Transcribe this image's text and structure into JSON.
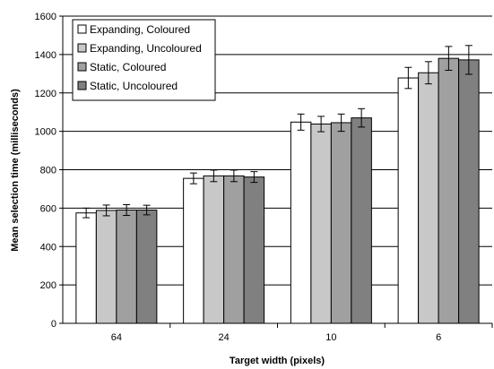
{
  "chart_data": {
    "type": "bar",
    "xlabel": "Target width (pixels)",
    "ylabel": "Mean selection time (milliseconds)",
    "categories": [
      "64",
      "24",
      "10",
      "6"
    ],
    "ylim": [
      0,
      1600
    ],
    "yticks": [
      0,
      200,
      400,
      600,
      800,
      1000,
      1200,
      1400,
      1600
    ],
    "grid": true,
    "legend": "top-left",
    "series": [
      {
        "name": "Expanding, Coloured",
        "color": "#ffffff",
        "values": [
          575,
          755,
          1048,
          1278
        ],
        "errors": [
          25,
          28,
          42,
          55
        ]
      },
      {
        "name": "Expanding, Uncoloured",
        "color": "#c8c8c8",
        "values": [
          588,
          768,
          1038,
          1305
        ],
        "errors": [
          28,
          30,
          40,
          58
        ]
      },
      {
        "name": "Static, Coloured",
        "color": "#a0a0a0",
        "values": [
          590,
          768,
          1045,
          1380
        ],
        "errors": [
          28,
          30,
          45,
          62
        ]
      },
      {
        "name": "Static, Uncoloured",
        "color": "#808080",
        "values": [
          590,
          762,
          1070,
          1372
        ],
        "errors": [
          25,
          28,
          48,
          75
        ]
      }
    ]
  }
}
